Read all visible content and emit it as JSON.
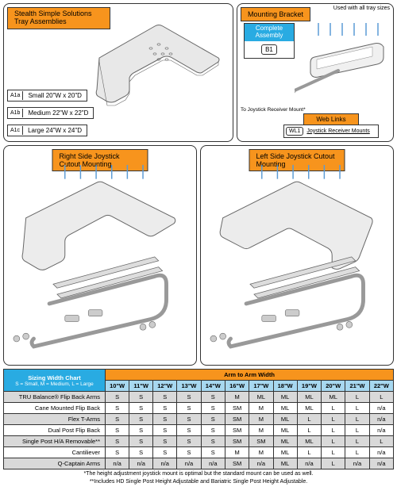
{
  "tray_panel": {
    "title": "Stealth Simple Solutions Tray Assemblies",
    "sizes": [
      {
        "code": "A1a",
        "label": "Small 20\"W x 20\"D"
      },
      {
        "code": "A1b",
        "label": "Medium 22\"W x 22\"D"
      },
      {
        "code": "A1c",
        "label": "Large 24\"W x 24\"D"
      }
    ]
  },
  "bracket_panel": {
    "title": "Mounting Bracket",
    "used_note": "Used with all tray sizes",
    "complete_label": "Complete Assembly",
    "complete_code": "B1",
    "joystick_note": "To Joystick Receiver Mount*",
    "weblinks_title": "Web Links",
    "wl_code": "WL1",
    "wl_text": "Joystick Receiver Mounts"
  },
  "mid_left": "Right Side Joystick Cutout Mounting",
  "mid_right": "Left Side Joystick Cutout Mounting",
  "sizing": {
    "title1": "Sizing Width Chart",
    "title1_sub": "S = Small, M = Medium, L = Large",
    "title2": "Arm to Arm Width",
    "widths": [
      "10\"W",
      "11\"W",
      "12\"W",
      "13\"W",
      "14\"W",
      "16\"W",
      "17\"W",
      "18\"W",
      "19\"W",
      "20\"W",
      "21\"W",
      "22\"W"
    ],
    "rows": [
      {
        "label": "TRU Balance® Flip Back Arms",
        "vals": [
          "S",
          "S",
          "S",
          "S",
          "S",
          "M",
          "ML",
          "ML",
          "ML",
          "ML",
          "L",
          "L"
        ]
      },
      {
        "label": "Cane Mounted Flip Back",
        "vals": [
          "S",
          "S",
          "S",
          "S",
          "S",
          "SM",
          "M",
          "ML",
          "ML",
          "L",
          "L",
          "n/a"
        ]
      },
      {
        "label": "Flex T-Arms",
        "vals": [
          "S",
          "S",
          "S",
          "S",
          "S",
          "SM",
          "M",
          "ML",
          "L",
          "L",
          "L",
          "n/a"
        ]
      },
      {
        "label": "Dual Post Flip Back",
        "vals": [
          "S",
          "S",
          "S",
          "S",
          "S",
          "SM",
          "M",
          "ML",
          "L",
          "L",
          "L",
          "n/a"
        ]
      },
      {
        "label": "Single Post H/A Removable**",
        "vals": [
          "S",
          "S",
          "S",
          "S",
          "S",
          "SM",
          "SM",
          "ML",
          "ML",
          "L",
          "L",
          "L"
        ]
      },
      {
        "label": "Cantiliever",
        "vals": [
          "S",
          "S",
          "S",
          "S",
          "S",
          "M",
          "M",
          "ML",
          "L",
          "L",
          "L",
          "n/a"
        ]
      },
      {
        "label": "Q-Captain Arms",
        "vals": [
          "n/a",
          "n/a",
          "n/a",
          "n/a",
          "n/a",
          "SM",
          "n/a",
          "ML",
          "n/a",
          "L",
          "n/a",
          "n/a"
        ]
      }
    ]
  },
  "footnote1": "*The height adjustment joystick mount is optimal but the standard mount can be used as well.",
  "footnote2": "**Includes HD Single Post Height Adjustable and Bariatric Single Post Height Adjustable.",
  "colors": {
    "orange": "#f7941d",
    "blue": "#29abe2",
    "lightblue": "#a7d8f0",
    "gray": "#d9d9d9",
    "traystroke": "#888",
    "trayfill": "#e8e8e8",
    "screw": "#5b9bd5"
  }
}
